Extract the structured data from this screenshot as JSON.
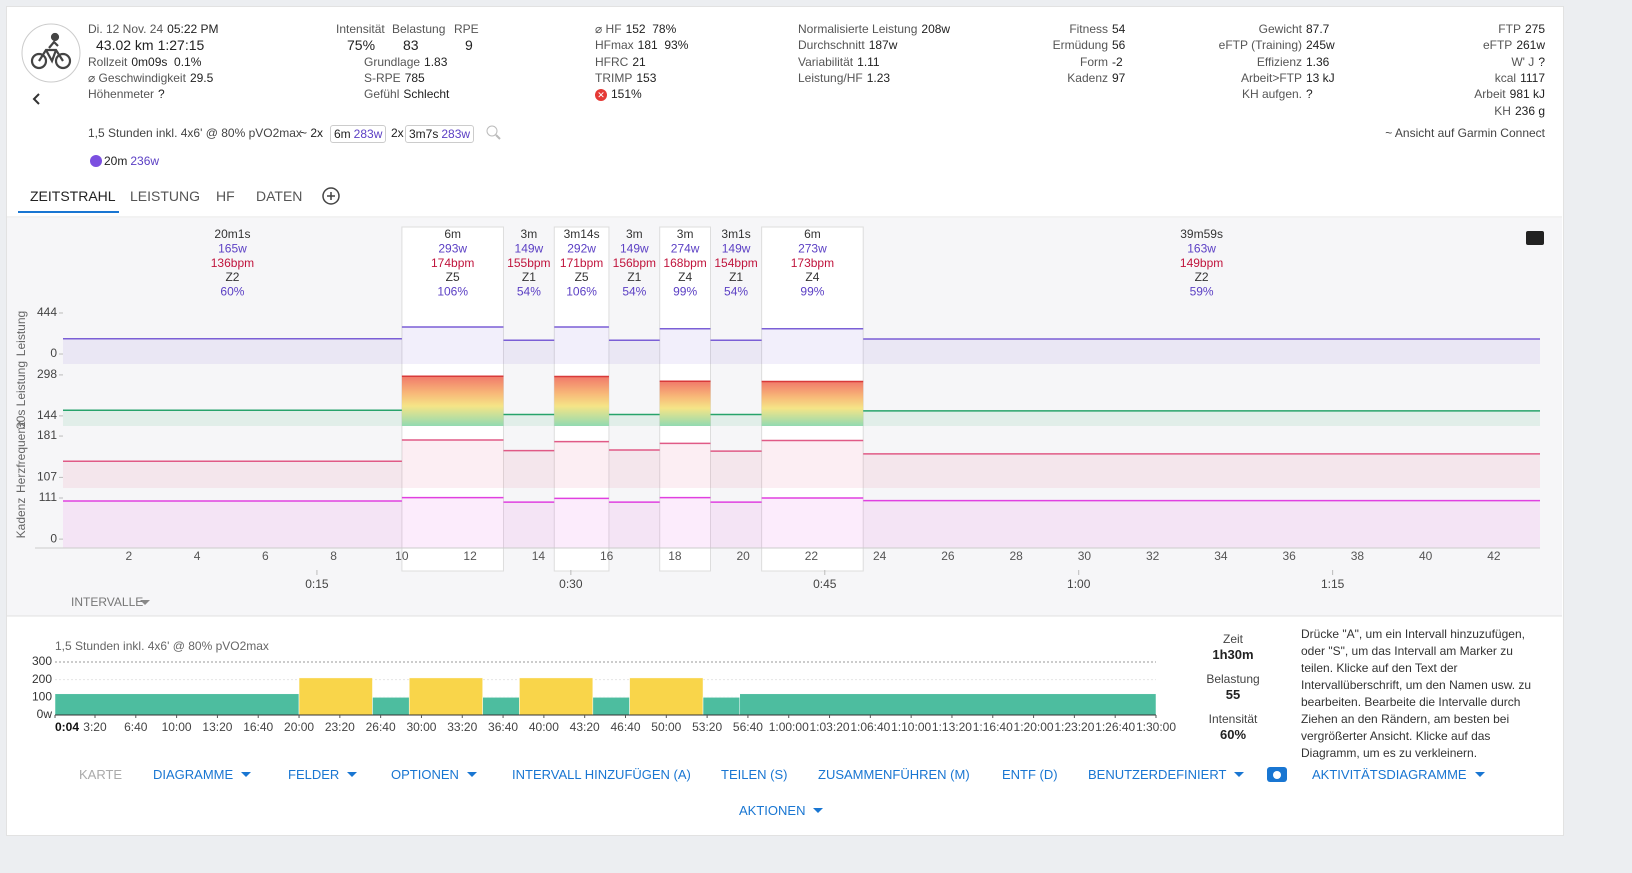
{
  "header": {
    "columns": [
      [
        {
          "label": "Di. 12 Nov. 24",
          "value": "05:22 PM"
        },
        {
          "label": "43.02 km",
          "value": "1:27:15"
        },
        {
          "label": "Rollzeit",
          "value": "0m09s  0.1%"
        },
        {
          "label": "⌀ Geschwindigkeit",
          "value": "29.5"
        },
        {
          "label": "Höhenmeter",
          "value": "?"
        }
      ],
      [
        {
          "label": "Grundlage",
          "value": "1.83"
        },
        {
          "label": "S-RPE",
          "value": "785"
        },
        {
          "label": "Gefühl",
          "value": "Schlecht"
        }
      ],
      [
        {
          "label": "⌀ HF",
          "value": "152  78%"
        },
        {
          "label": "HFmax",
          "value": "181  93%"
        },
        {
          "label": "HFRC",
          "value": "21"
        },
        {
          "label": "TRIMP",
          "value": "153"
        },
        {
          "label": "✕",
          "value": "151%"
        }
      ],
      [
        {
          "label": "Normalisierte Leistung",
          "value": "208w"
        },
        {
          "label": "Durchschnitt",
          "value": "187w"
        },
        {
          "label": "Variabilität",
          "value": "1.11"
        },
        {
          "label": "Leistung/HF",
          "value": "1.23"
        }
      ],
      [
        {
          "label": "Fitness",
          "value": "54"
        },
        {
          "label": "Ermüdung",
          "value": "56"
        },
        {
          "label": "Form",
          "value": "-2"
        },
        {
          "label": "Kadenz",
          "value": "97"
        }
      ],
      [
        {
          "label": "Gewicht",
          "value": "87.7"
        },
        {
          "label": "eFTP (Training)",
          "value": "245w"
        },
        {
          "label": "Effizienz",
          "value": "1.36"
        },
        {
          "label": "Arbeit>FTP",
          "value": "13 kJ"
        },
        {
          "label": "KH aufgen.",
          "value": "?"
        }
      ],
      [
        {
          "label": "FTP",
          "value": "275"
        },
        {
          "label": "eFTP",
          "value": "261w"
        },
        {
          "label": "W' J",
          "value": "?"
        },
        {
          "label": "kcal",
          "value": "1117"
        },
        {
          "label": "Arbeit",
          "value": "981 kJ"
        },
        {
          "label": "KH",
          "value": "236 g"
        }
      ]
    ],
    "scores": [
      {
        "label": "Intensität",
        "value": "75%"
      },
      {
        "label": "Belastung",
        "value": "83"
      },
      {
        "label": "RPE",
        "value": "9"
      }
    ]
  },
  "workout": {
    "name": "1,5 Stunden inkl. 4x6' @ 80% pVO2max",
    "matches": [
      {
        "prefix": "~ 2x",
        "duration": "6m",
        "power": "283w"
      },
      {
        "prefix": "2x",
        "duration": "3m7s",
        "power": "283w"
      }
    ],
    "link": "~ Ansicht auf Garmin Connect",
    "peak": {
      "duration": "20m",
      "power": "236w"
    }
  },
  "tabs": [
    "ZEITSTRAHL",
    "LEISTUNG",
    "HF",
    "DATEN"
  ],
  "timeline": {
    "type": "line",
    "xlim": [
      0,
      87.25
    ],
    "xticks": [
      {
        "value": 15,
        "label": "0:15"
      },
      {
        "value": 30,
        "label": "0:30"
      },
      {
        "value": 45,
        "label": "0:45"
      },
      {
        "value": 60,
        "label": "1:00"
      },
      {
        "value": 75,
        "label": "1:15"
      }
    ],
    "km_lim": [
      0.1,
      43.35
    ],
    "km_ticks": [
      2,
      4,
      6,
      8,
      10,
      12,
      14,
      16,
      18,
      20,
      22,
      24,
      26,
      28,
      30,
      32,
      34,
      36,
      38,
      40,
      42
    ],
    "intervals": [
      {
        "duration": "20m1s",
        "start": 0,
        "end": 20.02,
        "power": 165,
        "power_label": "165w",
        "hr": 136,
        "hr_label": "136bpm",
        "zone": "Z2",
        "percent": 60,
        "percent_label": "60%",
        "cadence": 103
      },
      {
        "duration": "6m",
        "start": 20.02,
        "end": 26.02,
        "power": 293,
        "power_label": "293w",
        "hr": 174,
        "hr_label": "174bpm",
        "zone": "Z5",
        "percent": 106,
        "percent_label": "106%",
        "cadence": 112
      },
      {
        "duration": "3m",
        "start": 26.02,
        "end": 29.02,
        "power": 149,
        "power_label": "149w",
        "hr": 155,
        "hr_label": "155bpm",
        "zone": "Z1",
        "percent": 54,
        "percent_label": "54%",
        "cadence": 100
      },
      {
        "duration": "3m14s",
        "start": 29.02,
        "end": 32.25,
        "power": 292,
        "power_label": "292w",
        "hr": 171,
        "hr_label": "171bpm",
        "zone": "Z5",
        "percent": 106,
        "percent_label": "106%",
        "cadence": 110
      },
      {
        "duration": "3m",
        "start": 32.25,
        "end": 35.25,
        "power": 149,
        "power_label": "149w",
        "hr": 156,
        "hr_label": "156bpm",
        "zone": "Z1",
        "percent": 54,
        "percent_label": "54%",
        "cadence": 100
      },
      {
        "duration": "3m",
        "start": 35.25,
        "end": 38.25,
        "power": 274,
        "power_label": "274w",
        "hr": 168,
        "hr_label": "168bpm",
        "zone": "Z4",
        "percent": 99,
        "percent_label": "99%",
        "cadence": 112
      },
      {
        "duration": "3m1s",
        "start": 38.25,
        "end": 41.27,
        "power": 149,
        "power_label": "149w",
        "hr": 154,
        "hr_label": "154bpm",
        "zone": "Z1",
        "percent": 54,
        "percent_label": "54%",
        "cadence": 100
      },
      {
        "duration": "6m",
        "start": 41.27,
        "end": 47.27,
        "power": 273,
        "power_label": "273w",
        "hr": 173,
        "hr_label": "173bpm",
        "zone": "Z4",
        "percent": 99,
        "percent_label": "99%",
        "cadence": 111
      },
      {
        "duration": "39m59s",
        "start": 47.27,
        "end": 87.25,
        "power": 163,
        "power_label": "163w",
        "hr": 149,
        "hr_label": "149bpm",
        "zone": "Z2",
        "percent": 59,
        "percent_label": "59%",
        "cadence": 104
      }
    ],
    "panels": [
      {
        "title": "Leistung",
        "key": "power",
        "color": "#7b5fd6",
        "ylim": [
          -108,
          552
        ],
        "yticks": [
          0,
          444
        ]
      },
      {
        "title": "30s Leistung",
        "key": "power",
        "color": "#27a36b",
        "ylim": [
          106,
          339
        ],
        "yticks": [
          144,
          298
        ]
      },
      {
        "title": "Herzfrequenz",
        "key": "hr",
        "color": "#e05a86",
        "ylim": [
          88,
          199
        ],
        "yticks": [
          107,
          181
        ]
      },
      {
        "title": "Kadenz",
        "key": "cadence",
        "color": "#e040e0",
        "ylim": [
          -24,
          138
        ],
        "yticks": [
          0,
          111
        ]
      }
    ],
    "menu": "INTERVALLE"
  },
  "plan": {
    "type": "bar",
    "title": "1,5 Stunden inkl. 4x6' @ 80% pVO2max",
    "x_start": [
      4,
      1200,
      1560,
      1740,
      2100,
      2280,
      2640,
      2820,
      3180,
      3360
    ],
    "x_end": [
      1200,
      1560,
      1740,
      2100,
      2280,
      2640,
      2820,
      3180,
      3360,
      5400
    ],
    "values": [
      120,
      210,
      100,
      210,
      100,
      210,
      100,
      210,
      100,
      120
    ],
    "colors": [
      "#4dbd9f",
      "#f9d54a",
      "#4dbd9f",
      "#f9d54a",
      "#4dbd9f",
      "#f9d54a",
      "#4dbd9f",
      "#f9d54a",
      "#4dbd9f",
      "#4dbd9f"
    ],
    "xlim": [
      4,
      5400
    ],
    "ylim": [
      0,
      300
    ],
    "yticks": [
      {
        "value": 0,
        "label": "0w"
      },
      100,
      200,
      300
    ],
    "xticks": [
      {
        "value": 4,
        "label": "0:04"
      },
      {
        "value": 200,
        "label": "3:20"
      },
      {
        "value": 400,
        "label": "6:40"
      },
      {
        "value": 600,
        "label": "10:00"
      },
      {
        "value": 800,
        "label": "13:20"
      },
      {
        "value": 1000,
        "label": "16:40"
      },
      {
        "value": 1200,
        "label": "20:00"
      },
      {
        "value": 1400,
        "label": "23:20"
      },
      {
        "value": 1600,
        "label": "26:40"
      },
      {
        "value": 1800,
        "label": "30:00"
      },
      {
        "value": 2000,
        "label": "33:20"
      },
      {
        "value": 2200,
        "label": "36:40"
      },
      {
        "value": 2400,
        "label": "40:00"
      },
      {
        "value": 2600,
        "label": "43:20"
      },
      {
        "value": 2800,
        "label": "46:40"
      },
      {
        "value": 3000,
        "label": "50:00"
      },
      {
        "value": 3200,
        "label": "53:20"
      },
      {
        "value": 3400,
        "label": "56:40"
      },
      {
        "value": 3600,
        "label": "1:00:00"
      },
      {
        "value": 3800,
        "label": "1:03:20"
      },
      {
        "value": 4000,
        "label": "1:06:40"
      },
      {
        "value": 4200,
        "label": "1:10:00"
      },
      {
        "value": 4400,
        "label": "1:13:20"
      },
      {
        "value": 4600,
        "label": "1:16:40"
      },
      {
        "value": 4800,
        "label": "1:20:00"
      },
      {
        "value": 5000,
        "label": "1:23:20"
      },
      {
        "value": 5200,
        "label": "1:26:40"
      },
      {
        "value": 5400,
        "label": "1:30:00"
      }
    ]
  },
  "summary": [
    {
      "label": "Zeit",
      "value": "1h30m"
    },
    {
      "label": "Belastung",
      "value": "55"
    },
    {
      "label": "Intensität",
      "value": "60%"
    }
  ],
  "help": "Drücke \"A\", um ein Intervall hinzuzufügen, oder \"S\", um das Intervall am Marker zu teilen. Klicke auf den Text der Intervallüberschrift, um den Namen usw. zu bearbeiten. Bearbeite die Intervalle durch Ziehen an den Rändern, am besten bei vergrößerter Ansicht. Klicke auf das Diagramm, um es zu verkleinern.",
  "buttons": [
    "KARTE",
    "DIAGRAMME",
    "FELDER",
    "OPTIONEN",
    "INTERVALL HINZUFÜGEN (A)",
    "TEILEN (S)",
    "ZUSAMMENFÜHREN (M)",
    "ENTF (D)",
    "BENUTZERDEFINIERT",
    "AKTIVITÄTSDIAGRAMME",
    "AKTIONEN"
  ]
}
